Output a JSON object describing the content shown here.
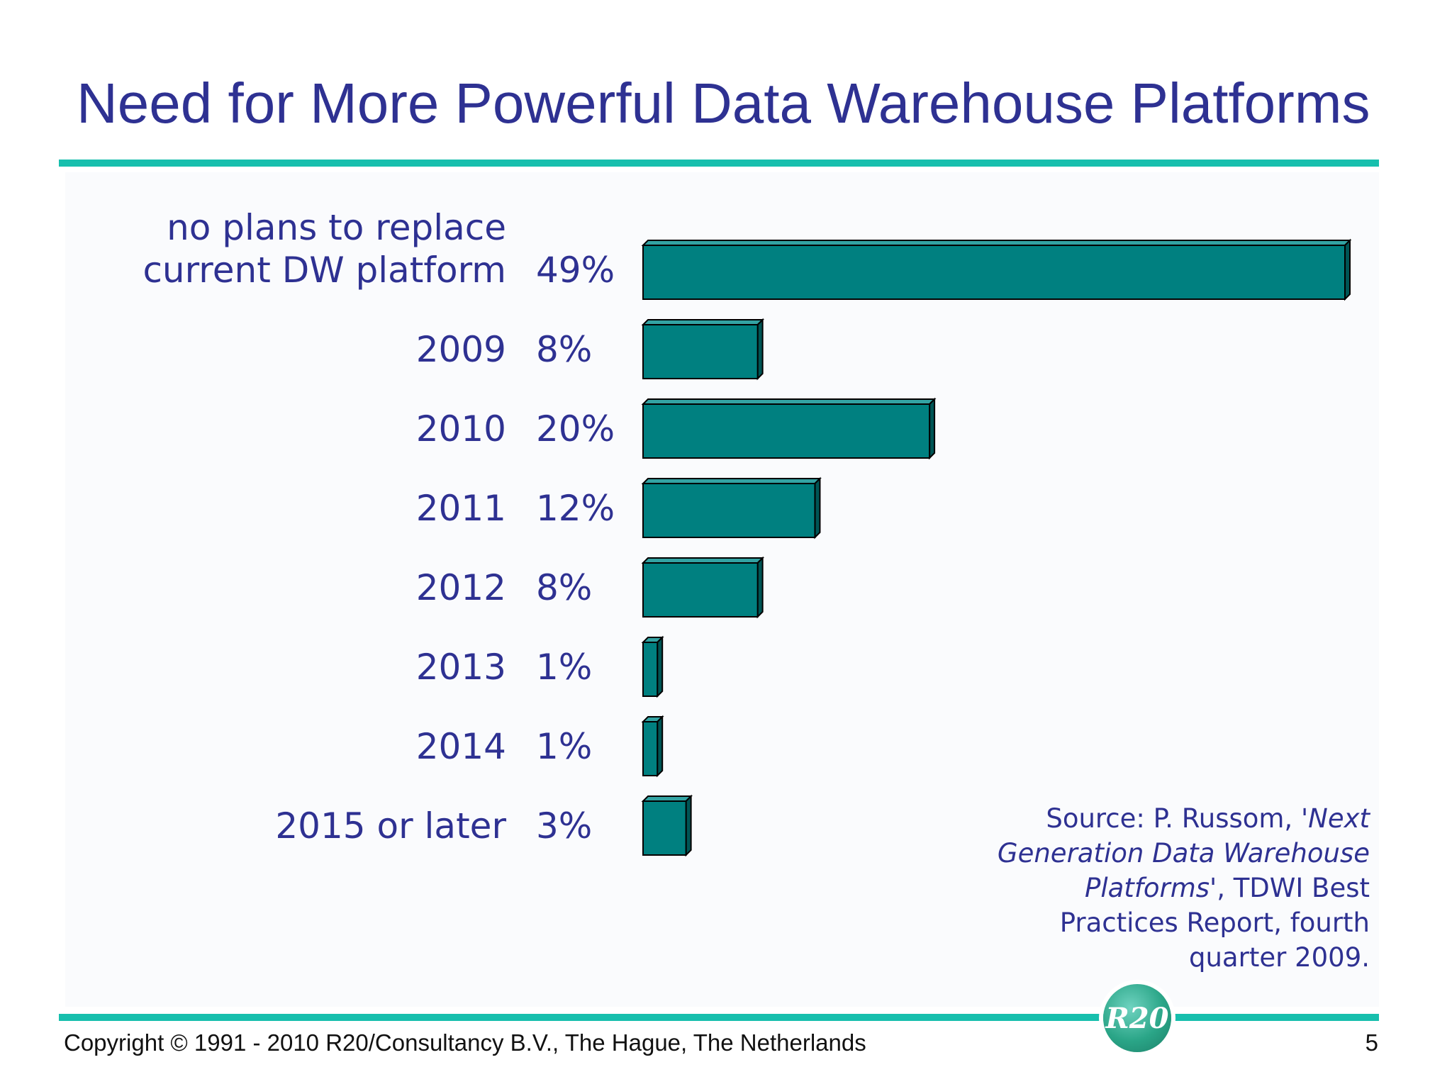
{
  "slide": {
    "title": "Need for More Powerful Data Warehouse Platforms",
    "footer_copyright": "Copyright © 1991 - 2010 R20/Consultancy B.V., The Hague, The Netherlands",
    "page_number": "5",
    "logo_text": "R20",
    "source_note": {
      "prefix": "Source: P. Russom, ",
      "title_italic": "'Next Generation Data Warehouse Platforms'",
      "suffix": ", TDWI Best Practices Report, fourth quarter 2009."
    }
  },
  "colors": {
    "title": "#2e3192",
    "rule": "#17bfad",
    "bar_front": "#008080",
    "bar_top": "#33a3a3",
    "bar_side": "#005555"
  },
  "chart_data": {
    "type": "bar",
    "orientation": "horizontal",
    "categories": [
      [
        "no plans to replace",
        "current DW platform"
      ],
      [
        "2009"
      ],
      [
        "2010"
      ],
      [
        "2011"
      ],
      [
        "2012"
      ],
      [
        "2013"
      ],
      [
        "2014"
      ],
      [
        "2015 or later"
      ]
    ],
    "values": [
      49,
      8,
      20,
      12,
      8,
      1,
      1,
      3
    ],
    "value_labels": [
      "49%",
      "8%",
      "20%",
      "12%",
      "8%",
      "1%",
      "1%",
      "3%"
    ],
    "unit": "%",
    "grid": false,
    "bar_style": "3d"
  }
}
